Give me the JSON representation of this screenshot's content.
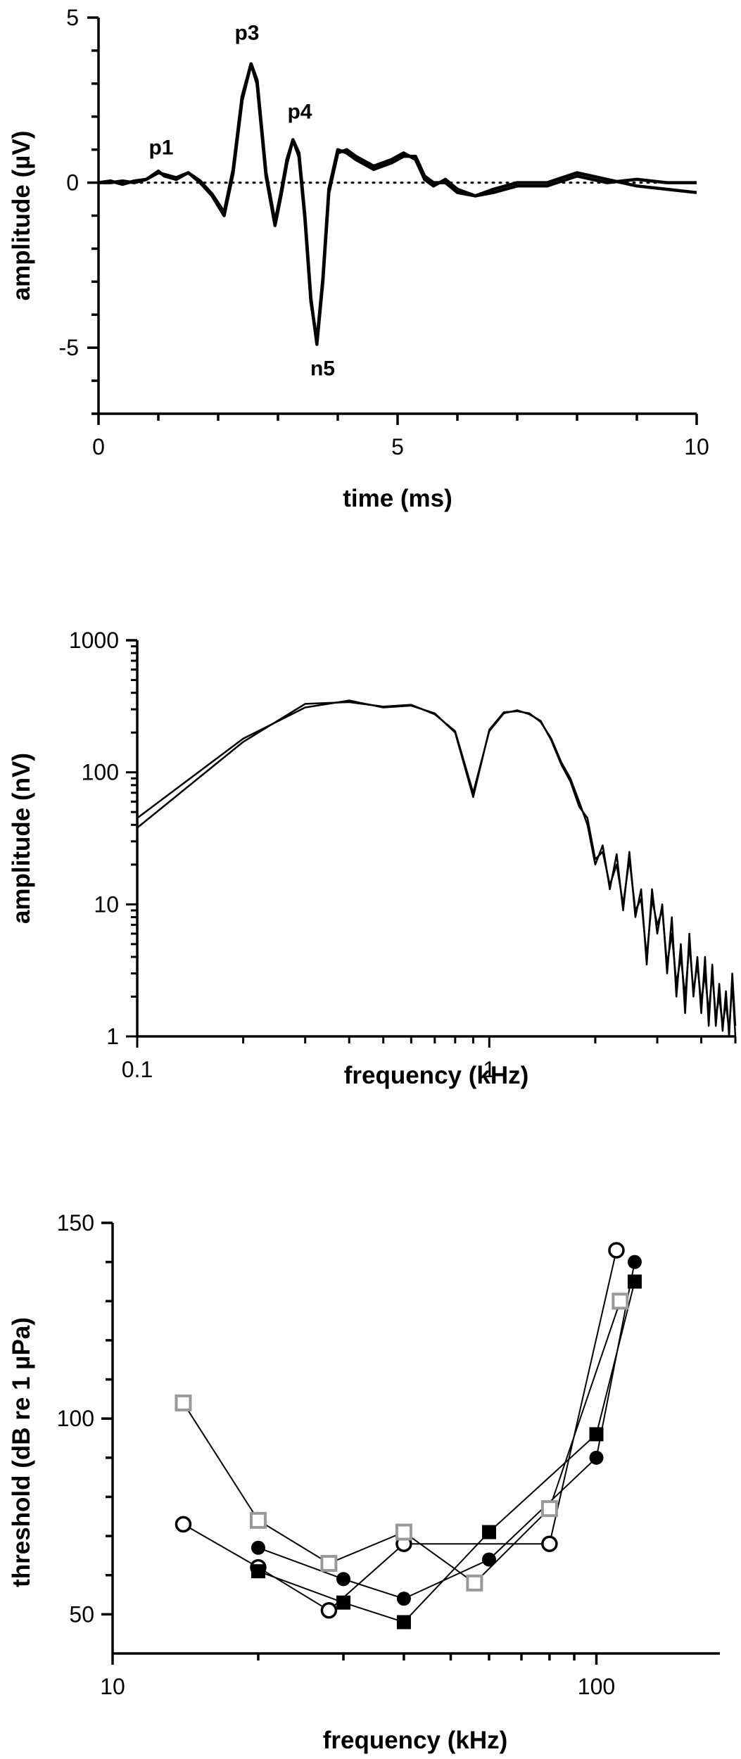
{
  "chart_data": [
    {
      "type": "line",
      "xlabel": "time (ms)",
      "ylabel": "amplitude (µV)",
      "xlim": [
        0,
        10
      ],
      "ylim": [
        -7,
        5
      ],
      "x_ticks": [
        "0",
        "5",
        "10"
      ],
      "y_ticks": [
        "5",
        "0",
        "-5"
      ],
      "zero_line": "dotted",
      "annotations": [
        {
          "label": "p1",
          "x": 1.0,
          "y": 0.3
        },
        {
          "label": "p3",
          "x": 2.6,
          "y": 3.6
        },
        {
          "label": "p4",
          "x": 3.2,
          "y": 1.3
        },
        {
          "label": "n5",
          "x": 3.7,
          "y": -4.9
        }
      ],
      "series": [
        {
          "x": [
            0,
            0.2,
            0.4,
            0.6,
            0.8,
            1.0,
            1.1,
            1.3,
            1.5,
            1.7,
            1.9,
            2.1,
            2.25,
            2.4,
            2.55,
            2.65,
            2.8,
            2.95,
            3.05,
            3.15,
            3.25,
            3.35,
            3.45,
            3.55,
            3.65,
            3.75,
            3.85,
            4.0,
            4.15,
            4.3,
            4.6,
            4.9,
            5.1,
            5.3,
            5.45,
            5.6,
            5.8,
            6.0,
            6.3,
            6.6,
            7.0,
            7.5,
            8.0,
            8.5,
            9.0,
            9.5,
            10.0
          ],
          "y": [
            0,
            0.05,
            -0.05,
            0.05,
            0.1,
            0.35,
            0.2,
            0.1,
            0.3,
            0.0,
            -0.4,
            -1.0,
            0.3,
            2.5,
            3.6,
            3.0,
            0.2,
            -1.3,
            -0.4,
            0.6,
            1.3,
            0.9,
            -1.0,
            -3.5,
            -4.9,
            -3.0,
            -0.3,
            0.9,
            1.0,
            0.8,
            0.5,
            0.7,
            0.9,
            0.7,
            0.1,
            -0.1,
            0.1,
            -0.2,
            -0.4,
            -0.3,
            -0.1,
            -0.1,
            0.2,
            0.0,
            0.1,
            0.0,
            0.0
          ]
        },
        {
          "x": [
            0,
            0.2,
            0.4,
            0.6,
            0.8,
            1.0,
            1.1,
            1.3,
            1.5,
            1.7,
            1.9,
            2.1,
            2.25,
            2.4,
            2.55,
            2.65,
            2.8,
            2.95,
            3.05,
            3.15,
            3.25,
            3.35,
            3.45,
            3.55,
            3.65,
            3.75,
            3.85,
            4.0,
            4.15,
            4.3,
            4.6,
            4.9,
            5.1,
            5.3,
            5.45,
            5.6,
            5.8,
            6.0,
            6.3,
            6.6,
            7.0,
            7.5,
            8.0,
            8.5,
            9.0,
            9.5,
            10.0
          ],
          "y": [
            0,
            0.0,
            0.05,
            0.0,
            0.1,
            0.3,
            0.25,
            0.15,
            0.3,
            0.05,
            -0.35,
            -0.9,
            0.4,
            2.6,
            3.6,
            3.1,
            0.3,
            -1.2,
            -0.3,
            0.7,
            1.3,
            0.8,
            -1.1,
            -3.6,
            -4.8,
            -2.9,
            -0.2,
            1.0,
            0.9,
            0.7,
            0.4,
            0.6,
            0.8,
            0.8,
            0.2,
            0.0,
            0.0,
            -0.3,
            -0.4,
            -0.2,
            0.0,
            0.0,
            0.3,
            0.1,
            -0.1,
            -0.2,
            -0.3
          ]
        }
      ]
    },
    {
      "type": "line",
      "xlabel": "frequency (kHz)",
      "ylabel": "amplitude (nV)",
      "xscale": "log",
      "yscale": "log",
      "xlim": [
        0.1,
        5.0
      ],
      "ylim": [
        1,
        1000
      ],
      "x_ticks": [
        "0.1",
        "1"
      ],
      "y_ticks": [
        "1000",
        "100",
        "10",
        "1"
      ],
      "series": [
        {
          "x": [
            0.1,
            0.2,
            0.3,
            0.4,
            0.5,
            0.6,
            0.7,
            0.8,
            0.9,
            1.0,
            1.1,
            1.2,
            1.3,
            1.4,
            1.5,
            1.6,
            1.7,
            1.8,
            1.9,
            2.0,
            2.1,
            2.2,
            2.3,
            2.4,
            2.5,
            2.6,
            2.7,
            2.8,
            2.9,
            3.0,
            3.1,
            3.2,
            3.3,
            3.4,
            3.5,
            3.6,
            3.7,
            3.8,
            3.9,
            4.0,
            4.1,
            4.2,
            4.3,
            4.4,
            4.5,
            4.6,
            4.7,
            4.8,
            4.9,
            5.0
          ],
          "y": [
            45,
            180,
            310,
            350,
            310,
            320,
            280,
            200,
            65,
            210,
            285,
            290,
            280,
            240,
            180,
            120,
            90,
            60,
            40,
            20,
            28,
            13,
            24,
            9,
            25,
            8,
            13,
            3.5,
            13,
            6,
            10,
            3,
            8,
            2,
            5,
            1.5,
            6,
            2,
            4,
            1.5,
            4,
            1.2,
            3.5,
            1.2,
            2.5,
            1.1,
            2.2,
            1.0,
            3.0,
            1.2
          ]
        },
        {
          "x": [
            0.1,
            0.2,
            0.3,
            0.4,
            0.5,
            0.6,
            0.7,
            0.8,
            0.9,
            1.0,
            1.1,
            1.2,
            1.3,
            1.4,
            1.5,
            1.6,
            1.7,
            1.8,
            1.9,
            2.0,
            2.1,
            2.2,
            2.3,
            2.4,
            2.5,
            2.6,
            2.7,
            2.8,
            2.9,
            3.0,
            3.1,
            3.2,
            3.3,
            3.4,
            3.5,
            3.6,
            3.7,
            3.8,
            3.9,
            4.0,
            4.1,
            4.2,
            4.3,
            4.4,
            4.5,
            4.6,
            4.7,
            4.8,
            4.9,
            5.0
          ],
          "y": [
            38,
            170,
            330,
            340,
            315,
            325,
            275,
            205,
            70,
            205,
            280,
            295,
            275,
            245,
            175,
            115,
            85,
            55,
            45,
            22,
            25,
            14,
            20,
            10,
            22,
            9,
            11,
            4,
            11,
            7,
            9,
            3.5,
            6,
            2.5,
            4,
            2,
            5,
            2.2,
            3.5,
            1.8,
            3,
            1.5,
            3,
            1.4,
            2,
            1.2,
            1.8,
            1.1,
            2.5,
            1.0
          ]
        }
      ]
    },
    {
      "type": "scatter",
      "xlabel": "frequency (kHz)",
      "ylabel": "threshold (dB re 1 µPa)",
      "xscale": "log",
      "xlim": [
        10,
        180
      ],
      "ylim": [
        40,
        150
      ],
      "x_ticks": [
        "10",
        "100"
      ],
      "y_ticks": [
        "150",
        "100",
        "50"
      ],
      "series": [
        {
          "marker": "open-circle",
          "color": "#000000",
          "x": [
            14,
            20,
            28,
            40,
            80,
            110
          ],
          "y": [
            73,
            62,
            51,
            68,
            68,
            143
          ]
        },
        {
          "marker": "filled-circle",
          "color": "#000000",
          "x": [
            20,
            30,
            40,
            60,
            100,
            120
          ],
          "y": [
            67,
            59,
            54,
            64,
            90,
            140
          ]
        },
        {
          "marker": "filled-square",
          "color": "#000000",
          "x": [
            20,
            30,
            40,
            60,
            100,
            120
          ],
          "y": [
            61,
            53,
            48,
            71,
            96,
            135
          ]
        },
        {
          "marker": "open-square",
          "color": "#999999",
          "x": [
            14,
            20,
            28,
            40,
            56,
            80,
            112
          ],
          "y": [
            104,
            74,
            63,
            71,
            58,
            77,
            130
          ]
        }
      ]
    }
  ]
}
